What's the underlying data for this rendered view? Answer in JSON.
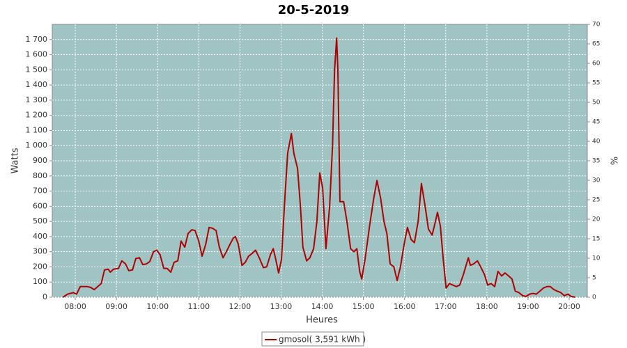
{
  "chart_data": {
    "type": "line",
    "title": "20-5-2019",
    "x_label": "Heures",
    "y_label": "Watts",
    "y2_label": "%",
    "xlim": [
      7.44,
      20.44
    ],
    "xticks": [
      {
        "value": 8,
        "label": "08:00"
      },
      {
        "value": 9,
        "label": "09:00"
      },
      {
        "value": 10,
        "label": "10:00"
      },
      {
        "value": 11,
        "label": "11:00"
      },
      {
        "value": 12,
        "label": "12:00"
      },
      {
        "value": 13,
        "label": "13:00"
      },
      {
        "value": 14,
        "label": "14:00"
      },
      {
        "value": 15,
        "label": "15:00"
      },
      {
        "value": 16,
        "label": "16:00"
      },
      {
        "value": 17,
        "label": "17:00"
      },
      {
        "value": 18,
        "label": "18:00"
      },
      {
        "value": 19,
        "label": "19:00"
      },
      {
        "value": 20,
        "label": "20:00"
      }
    ],
    "ylim": [
      0,
      1800
    ],
    "yticks": [
      0,
      100,
      200,
      300,
      400,
      500,
      600,
      700,
      800,
      900,
      {
        "value": 1000,
        "label": "1 000"
      },
      {
        "value": 1100,
        "label": "1 100"
      },
      {
        "value": 1200,
        "label": "1 200"
      },
      {
        "value": 1300,
        "label": "1 300"
      },
      {
        "value": 1400,
        "label": "1 400"
      },
      {
        "value": 1500,
        "label": "1 500"
      },
      {
        "value": 1600,
        "label": "1 600"
      },
      {
        "value": 1700,
        "label": "1 700"
      }
    ],
    "y2lim": [
      0,
      70
    ],
    "y2ticks": [
      0,
      5,
      10,
      15,
      20,
      25,
      30,
      35,
      40,
      45,
      50,
      55,
      60,
      65,
      70
    ],
    "grid": true,
    "x": [
      7.7,
      7.81,
      7.95,
      8.03,
      8.12,
      8.29,
      8.37,
      8.46,
      8.63,
      8.71,
      8.8,
      8.85,
      8.93,
      9.05,
      9.13,
      9.22,
      9.3,
      9.39,
      9.47,
      9.56,
      9.64,
      9.73,
      9.81,
      9.9,
      9.98,
      10.06,
      10.15,
      10.23,
      10.32,
      10.4,
      10.49,
      10.57,
      10.66,
      10.74,
      10.83,
      10.91,
      11.0,
      11.08,
      11.17,
      11.25,
      11.33,
      11.42,
      11.5,
      11.59,
      11.67,
      11.76,
      11.84,
      11.89,
      11.96,
      12.05,
      12.13,
      12.21,
      12.3,
      12.38,
      12.47,
      12.57,
      12.65,
      12.74,
      12.81,
      12.87,
      12.94,
      13.01,
      13.08,
      13.16,
      13.25,
      13.31,
      13.4,
      13.47,
      13.53,
      13.62,
      13.7,
      13.79,
      13.87,
      13.94,
      14.01,
      14.09,
      14.18,
      14.25,
      14.3,
      14.35,
      14.38,
      14.43,
      14.52,
      14.6,
      14.69,
      14.77,
      14.84,
      14.91,
      14.96,
      15.04,
      15.15,
      15.25,
      15.33,
      15.42,
      15.5,
      15.57,
      15.65,
      15.74,
      15.82,
      15.9,
      15.99,
      16.07,
      16.16,
      16.24,
      16.33,
      16.41,
      16.5,
      16.58,
      16.67,
      16.75,
      16.8,
      16.87,
      16.94,
      17.01,
      17.09,
      17.17,
      17.26,
      17.34,
      17.43,
      17.55,
      17.6,
      17.68,
      17.77,
      17.85,
      17.94,
      18.02,
      18.1,
      18.19,
      18.27,
      18.36,
      18.44,
      18.53,
      18.61,
      18.69,
      18.78,
      18.87,
      18.95,
      19.04,
      19.12,
      19.2,
      19.29,
      19.37,
      19.46,
      19.54,
      19.63,
      19.71,
      19.8,
      19.88,
      19.97,
      20.05,
      20.14
    ],
    "series": [
      {
        "name": "gmosol( 3,591 kWh )",
        "color": "#b00000",
        "values": [
          0,
          20,
          30,
          20,
          70,
          70,
          65,
          50,
          90,
          180,
          185,
          165,
          185,
          190,
          240,
          220,
          175,
          180,
          255,
          260,
          215,
          220,
          235,
          300,
          310,
          280,
          190,
          190,
          165,
          230,
          240,
          370,
          330,
          420,
          445,
          440,
          370,
          270,
          350,
          460,
          455,
          440,
          330,
          260,
          300,
          350,
          390,
          400,
          350,
          210,
          230,
          270,
          290,
          310,
          260,
          195,
          200,
          280,
          320,
          250,
          160,
          250,
          600,
          950,
          1080,
          950,
          850,
          600,
          330,
          240,
          260,
          320,
          500,
          820,
          720,
          320,
          600,
          1000,
          1500,
          1710,
          1500,
          630,
          630,
          500,
          320,
          300,
          320,
          170,
          120,
          250,
          470,
          650,
          770,
          650,
          500,
          420,
          220,
          200,
          110,
          200,
          350,
          460,
          380,
          360,
          500,
          750,
          600,
          450,
          410,
          500,
          560,
          470,
          250,
          60,
          90,
          80,
          70,
          80,
          150,
          260,
          210,
          220,
          240,
          200,
          150,
          80,
          90,
          70,
          170,
          140,
          160,
          140,
          120,
          40,
          30,
          10,
          5,
          20,
          25,
          20,
          40,
          60,
          70,
          70,
          50,
          40,
          30,
          10,
          20,
          5,
          0
        ]
      }
    ]
  }
}
